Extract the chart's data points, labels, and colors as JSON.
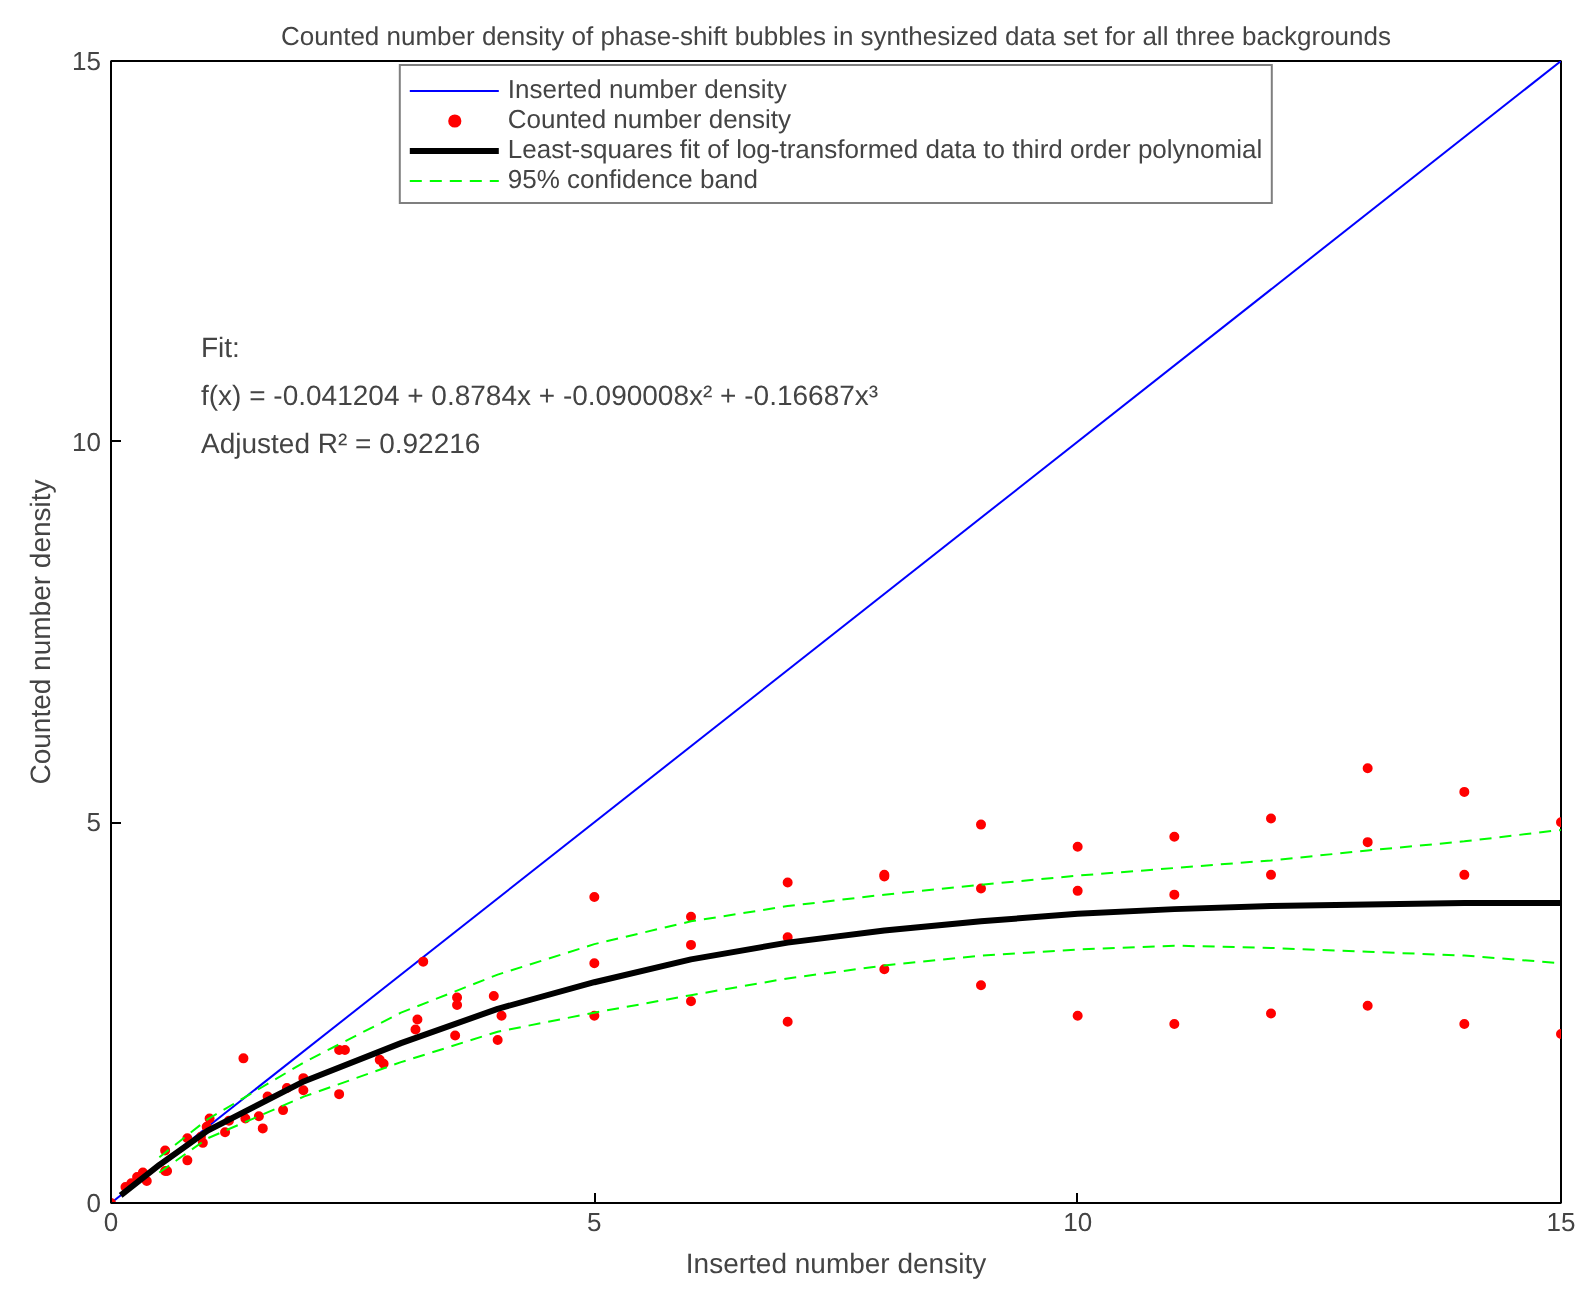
{
  "chart_data": {
    "type": "line",
    "title": "Counted number density of phase-shift bubbles in synthesized data set for all three backgrounds",
    "xlabel": "Inserted number density",
    "ylabel": "Counted number density",
    "xlim": [
      0,
      15
    ],
    "ylim": [
      0,
      15
    ],
    "xticks": [
      0,
      5,
      10,
      15
    ],
    "yticks": [
      0,
      5,
      10,
      15
    ],
    "grid": false,
    "legend": "top",
    "annotations": [
      "Fit:",
      "f(x) = -0.041204 + 0.8784x + -0.090008x² + -0.16687x³",
      "Adjusted R² = 0.92216"
    ],
    "series": [
      {
        "name": "Inserted number density",
        "color": "#0000ff",
        "x": [
          0,
          15
        ],
        "values": [
          0,
          15
        ],
        "marker": "none",
        "line_style": "solid"
      },
      {
        "name": "Counted number density",
        "type": "scatter",
        "color": "#ff0000",
        "marker": "circle",
        "x": [
          0.0,
          0.15,
          0.21,
          0.27,
          0.33,
          0.37,
          0.56,
          0.56,
          0.58,
          0.79,
          0.79,
          0.95,
          0.99,
          1.02,
          0.93,
          1.18,
          1.22,
          1.37,
          1.39,
          1.53,
          1.57,
          1.62,
          1.78,
          1.82,
          1.99,
          1.99,
          2.36,
          2.42,
          2.36,
          2.78,
          2.82,
          3.23,
          3.17,
          3.15,
          3.58,
          3.58,
          3.56,
          3.96,
          4.04,
          4.0,
          5,
          5,
          5,
          6,
          6,
          6,
          7,
          7,
          7,
          8,
          8,
          8,
          9,
          9,
          9,
          10,
          10,
          10,
          11,
          11,
          11,
          12,
          12,
          12,
          13,
          13,
          13,
          14,
          14,
          14,
          15,
          15
        ],
        "values": [
          0.0,
          0.21,
          0.26,
          0.34,
          0.4,
          0.29,
          0.69,
          0.42,
          0.42,
          0.85,
          0.56,
          0.79,
          1.0,
          1.11,
          0.87,
          0.93,
          1.08,
          1.9,
          1.11,
          1.14,
          0.98,
          1.4,
          1.22,
          1.51,
          1.64,
          1.48,
          2.01,
          2.01,
          1.43,
          1.88,
          1.83,
          3.17,
          2.41,
          2.28,
          2.7,
          2.6,
          2.2,
          2.72,
          2.46,
          2.14,
          4.02,
          3.15,
          2.46,
          3.76,
          3.39,
          2.65,
          4.21,
          3.49,
          2.38,
          4.31,
          4.29,
          3.07,
          4.97,
          4.13,
          2.86,
          4.68,
          4.1,
          2.46,
          4.81,
          4.05,
          2.35,
          5.05,
          4.31,
          2.49,
          5.71,
          4.74,
          2.59,
          5.4,
          4.31,
          2.35,
          5.0,
          2.22
        ]
      },
      {
        "name": "Least-squares fit of log-transformed data to third order polynomial",
        "color": "#000000",
        "marker": "none",
        "line_style": "solid",
        "x": [
          0.1,
          0.5,
          1,
          2,
          3,
          4,
          5,
          6,
          7,
          8,
          9,
          10,
          11,
          12,
          13,
          14,
          15
        ],
        "values": [
          0.1,
          0.5,
          0.95,
          1.6,
          2.1,
          2.55,
          2.9,
          3.2,
          3.42,
          3.58,
          3.7,
          3.8,
          3.86,
          3.9,
          3.92,
          3.94,
          3.94
        ]
      },
      {
        "name": "95% confidence band",
        "color": "#00ff00",
        "marker": "none",
        "line_style": "dashed",
        "x": [
          0.5,
          1,
          2,
          3,
          4,
          5,
          6,
          7,
          8,
          9,
          10,
          11,
          12,
          13,
          14,
          15
        ],
        "values": [
          0.6,
          1.1,
          1.85,
          2.5,
          3.0,
          3.4,
          3.7,
          3.9,
          4.05,
          4.18,
          4.3,
          4.4,
          4.5,
          4.63,
          4.75,
          4.9
        ]
      },
      {
        "color": "#00ff00",
        "marker": "none",
        "line_style": "dashed",
        "x": [
          0.5,
          1,
          2,
          3,
          4,
          5,
          6,
          7,
          8,
          9,
          10,
          11,
          12,
          13,
          14,
          15
        ],
        "values": [
          0.4,
          0.85,
          1.4,
          1.85,
          2.25,
          2.5,
          2.73,
          2.95,
          3.12,
          3.25,
          3.33,
          3.38,
          3.35,
          3.3,
          3.25,
          3.15
        ]
      }
    ]
  }
}
